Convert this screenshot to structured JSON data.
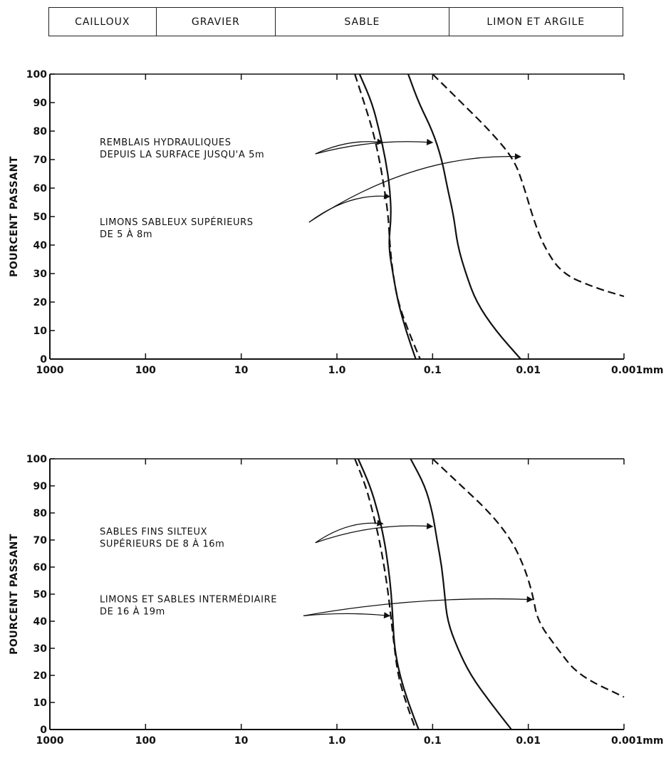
{
  "soil_scale": [
    {
      "label": "CAILLOUX"
    },
    {
      "label": "GRAVIER"
    },
    {
      "label": "SABLE"
    },
    {
      "label": "LIMON ET ARGILE"
    }
  ],
  "chart_data": [
    {
      "type": "line",
      "ylabel": "POURCENT PASSANT",
      "xscale": "log-reversed",
      "xlim": [
        1000,
        0.001
      ],
      "ylim": [
        0,
        100
      ],
      "x_ticks": [
        1000,
        100,
        10,
        1.0,
        0.1,
        0.01,
        0.001
      ],
      "x_tick_labels": [
        "1000",
        "100",
        "10",
        "1.0",
        "0.1",
        "0.01",
        "0.001mm"
      ],
      "y_ticks": [
        0,
        10,
        20,
        30,
        40,
        50,
        60,
        70,
        80,
        90,
        100
      ],
      "series": [
        {
          "style": "dashed",
          "points": [
            [
              0.65,
              100
            ],
            [
              0.52,
              90
            ],
            [
              0.42,
              80
            ],
            [
              0.36,
              70
            ],
            [
              0.32,
              60
            ],
            [
              0.29,
              50
            ],
            [
              0.28,
              40
            ],
            [
              0.26,
              30
            ],
            [
              0.23,
              20
            ],
            [
              0.18,
              10
            ],
            [
              0.135,
              0
            ]
          ]
        },
        {
          "style": "solid",
          "points": [
            [
              0.58,
              100
            ],
            [
              0.43,
              90
            ],
            [
              0.36,
              80
            ],
            [
              0.31,
              70
            ],
            [
              0.28,
              60
            ],
            [
              0.27,
              50
            ],
            [
              0.29,
              40
            ],
            [
              0.26,
              30
            ],
            [
              0.23,
              20
            ],
            [
              0.19,
              10
            ],
            [
              0.15,
              0
            ]
          ]
        },
        {
          "style": "solid",
          "points": [
            [
              0.18,
              100
            ],
            [
              0.14,
              90
            ],
            [
              0.1,
              80
            ],
            [
              0.08,
              70
            ],
            [
              0.07,
              60
            ],
            [
              0.06,
              50
            ],
            [
              0.055,
              40
            ],
            [
              0.045,
              30
            ],
            [
              0.035,
              20
            ],
            [
              0.022,
              10
            ],
            [
              0.012,
              0
            ]
          ]
        },
        {
          "style": "dashed",
          "points": [
            [
              0.1,
              100
            ],
            [
              0.05,
              90
            ],
            [
              0.025,
              80
            ],
            [
              0.014,
              70
            ],
            [
              0.011,
              60
            ],
            [
              0.009,
              50
            ],
            [
              0.007,
              40
            ],
            [
              0.0045,
              30
            ],
            [
              0.002,
              25
            ],
            [
              0.001,
              22
            ]
          ]
        }
      ],
      "annotations": [
        {
          "lines": [
            "REMBLAIS HYDRAULIQUES",
            "DEPUIS LA SURFACE JUSQU'A 5m"
          ],
          "x": 270,
          "y": 75,
          "arrows": [
            {
              "from": [
                0.6,
                72
              ],
              "to": [
                0.33,
                76
              ]
            },
            {
              "from": [
                0.6,
                72
              ],
              "to": [
                0.1,
                76
              ]
            }
          ]
        },
        {
          "lines": [
            "LIMONS SABLEUX SUPÉRIEURS",
            "DE 5 À 8m"
          ],
          "x": 270,
          "y": 47,
          "arrows": [
            {
              "from": [
                0.7,
                48
              ],
              "to": [
                0.28,
                57
              ]
            },
            {
              "from": [
                0.7,
                48
              ],
              "to": [
                0.012,
                71
              ]
            }
          ]
        }
      ]
    },
    {
      "type": "line",
      "ylabel": "POURCENT PASSANT",
      "xscale": "log-reversed",
      "xlim": [
        1000,
        0.001
      ],
      "ylim": [
        0,
        100
      ],
      "x_ticks": [
        1000,
        100,
        10,
        1.0,
        0.1,
        0.01,
        0.001
      ],
      "x_tick_labels": [
        "1000",
        "100",
        "10",
        "1.0",
        "0.1",
        "0.01",
        "0.001mm"
      ],
      "y_ticks": [
        0,
        10,
        20,
        30,
        40,
        50,
        60,
        70,
        80,
        90,
        100
      ],
      "series": [
        {
          "style": "dashed",
          "points": [
            [
              0.65,
              100
            ],
            [
              0.5,
              90
            ],
            [
              0.42,
              80
            ],
            [
              0.36,
              70
            ],
            [
              0.32,
              60
            ],
            [
              0.29,
              50
            ],
            [
              0.27,
              40
            ],
            [
              0.25,
              30
            ],
            [
              0.23,
              20
            ],
            [
              0.19,
              10
            ],
            [
              0.15,
              0
            ]
          ]
        },
        {
          "style": "solid",
          "points": [
            [
              0.6,
              100
            ],
            [
              0.45,
              90
            ],
            [
              0.37,
              80
            ],
            [
              0.32,
              70
            ],
            [
              0.29,
              60
            ],
            [
              0.27,
              50
            ],
            [
              0.26,
              40
            ],
            [
              0.25,
              30
            ],
            [
              0.22,
              20
            ],
            [
              0.18,
              10
            ],
            [
              0.14,
              0
            ]
          ]
        },
        {
          "style": "solid",
          "points": [
            [
              0.17,
              100
            ],
            [
              0.12,
              90
            ],
            [
              0.1,
              80
            ],
            [
              0.09,
              70
            ],
            [
              0.08,
              60
            ],
            [
              0.075,
              50
            ],
            [
              0.07,
              40
            ],
            [
              0.055,
              30
            ],
            [
              0.04,
              20
            ],
            [
              0.025,
              10
            ],
            [
              0.015,
              0
            ]
          ]
        },
        {
          "style": "dashed",
          "points": [
            [
              0.1,
              100
            ],
            [
              0.05,
              90
            ],
            [
              0.025,
              80
            ],
            [
              0.015,
              70
            ],
            [
              0.011,
              60
            ],
            [
              0.009,
              50
            ],
            [
              0.008,
              40
            ],
            [
              0.005,
              30
            ],
            [
              0.003,
              20
            ],
            [
              0.001,
              12
            ]
          ]
        }
      ],
      "annotations": [
        {
          "lines": [
            "SABLES FINS SILTEUX",
            "SUPÉRIEURS DE 8 À 16m"
          ],
          "x": 270,
          "y": 72,
          "arrows": [
            {
              "from": [
                0.6,
                69
              ],
              "to": [
                0.33,
                76
              ]
            },
            {
              "from": [
                0.6,
                69
              ],
              "to": [
                0.1,
                75
              ]
            }
          ]
        },
        {
          "lines": [
            "LIMONS ET SABLES INTERMÉDIAIRE",
            "DE 16 À 19m"
          ],
          "x": 270,
          "y": 47,
          "arrows": [
            {
              "from": [
                0.8,
                42
              ],
              "to": [
                0.28,
                42
              ]
            },
            {
              "from": [
                0.8,
                42
              ],
              "to": [
                0.009,
                48
              ]
            }
          ]
        }
      ]
    }
  ]
}
